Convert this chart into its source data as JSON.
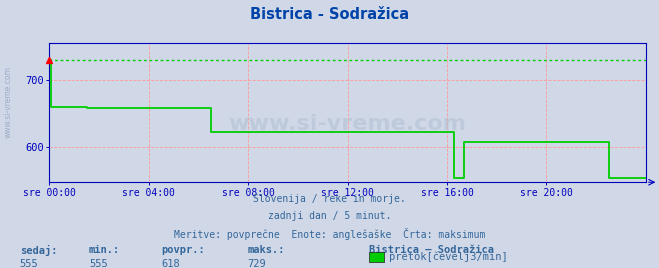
{
  "title": "Bistrica - Sodražica",
  "bg_color": "#d0d8e8",
  "plot_bg_color": "#d0d8e8",
  "grid_color": "#ff9999",
  "max_line_color": "#00cc00",
  "flow_line_color": "#00cc00",
  "axis_color": "#0000bb",
  "text_color": "#336699",
  "title_color": "#0044aa",
  "watermark_color": "#aabbcc",
  "xlabel_ticks": [
    "sre 00:00",
    "sre 04:00",
    "sre 08:00",
    "sre 12:00",
    "sre 16:00",
    "sre 20:00"
  ],
  "xlabel_ticks_pos": [
    0,
    4,
    8,
    12,
    16,
    20
  ],
  "ylim": [
    548,
    755
  ],
  "yticks": [
    600,
    700
  ],
  "ymax_line": 729,
  "subtitle_lines": [
    "Slovenija / reke in morje.",
    "zadnji dan / 5 minut.",
    "Meritve: povprečne  Enote: anglešaške  Črta: maksimum"
  ],
  "stat_labels": [
    "sedaj:",
    "min.:",
    "povpr.:",
    "maks.:"
  ],
  "stat_values": [
    "555",
    "555",
    "618",
    "729"
  ],
  "legend_label": "pretok[čevelj3/min]",
  "legend_color": "#00cc00",
  "station_label": "Bistrica – Sodražica",
  "flow_times": [
    0.0,
    0.08,
    0.08,
    1.5,
    1.5,
    6.5,
    6.5,
    16.3,
    16.3,
    16.7,
    16.7,
    22.5,
    22.5,
    24.0
  ],
  "flow_values": [
    729,
    729,
    660,
    660,
    658,
    658,
    622,
    622,
    555,
    555,
    608,
    608,
    555,
    555
  ]
}
